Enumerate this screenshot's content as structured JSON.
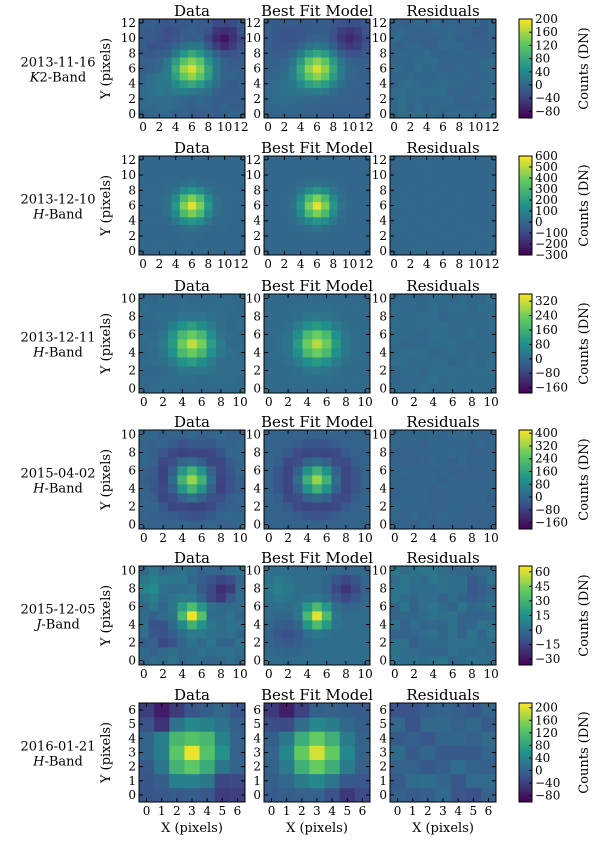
{
  "chart_data": {
    "type": "heatmap",
    "panel_titles": [
      "Data",
      "Best Fit Model",
      "Residuals"
    ],
    "xlabel": "X (pixels)",
    "ylabel": "Y (pixels)",
    "colorbar_label": "Counts (DN)",
    "colormap": [
      "#440154",
      "#3b528b",
      "#21918c",
      "#5ec962",
      "#fde725"
    ],
    "rows": [
      {
        "date": "2013-11-16",
        "band": "K2-Band",
        "band_letter": "K",
        "band_suffix": "2-Band",
        "grid_n": 13,
        "ticks": [
          "0",
          "2",
          "4",
          "6",
          "8",
          "10",
          "12"
        ],
        "cbar_ticks": [
          "200",
          "160",
          "120",
          "80",
          "40",
          "0",
          "−40",
          "−80"
        ],
        "cbar_range": [
          -100,
          200
        ],
        "peak": 190,
        "background": -8,
        "ring_amplitude": 0,
        "psf_sigma": 1.6,
        "residual_noise": 6,
        "features": [
          {
            "x": 2,
            "y": 3,
            "amp": 25,
            "width": 1.6
          },
          {
            "x": 10,
            "y": 10,
            "amp": -70,
            "width": 1.4
          },
          {
            "x": 3,
            "y": 10,
            "amp": -20,
            "width": 1.8
          }
        ]
      },
      {
        "date": "2013-12-10",
        "band": "H-Band",
        "band_letter": "H",
        "band_suffix": "-Band",
        "grid_n": 13,
        "ticks": [
          "0",
          "2",
          "4",
          "6",
          "8",
          "10",
          "12"
        ],
        "cbar_ticks": [
          "600",
          "500",
          "400",
          "300",
          "200",
          "100",
          "0",
          "−100",
          "−200",
          "−300"
        ],
        "cbar_range": [
          -300,
          600
        ],
        "peak": 560,
        "background": 0,
        "ring_amplitude": 0,
        "psf_sigma": 1.3,
        "residual_noise": 4,
        "features": []
      },
      {
        "date": "2013-12-11",
        "band": "H-Band",
        "band_letter": "H",
        "band_suffix": "-Band",
        "grid_n": 11,
        "ticks": [
          "0",
          "2",
          "4",
          "6",
          "8",
          "10"
        ],
        "cbar_ticks": [
          "320",
          "240",
          "160",
          "80",
          "0",
          "−80",
          "−160"
        ],
        "cbar_range": [
          -190,
          360
        ],
        "peak": 300,
        "background": 0,
        "ring_amplitude": 0,
        "psf_sigma": 1.4,
        "residual_noise": 8,
        "features": []
      },
      {
        "date": "2015-04-02",
        "band": "H-Band",
        "band_letter": "H",
        "band_suffix": "-Band",
        "grid_n": 11,
        "ticks": [
          "0",
          "2",
          "4",
          "6",
          "8",
          "10"
        ],
        "cbar_ticks": [
          "400",
          "320",
          "240",
          "160",
          "80",
          "0",
          "−80",
          "−160"
        ],
        "cbar_range": [
          -200,
          420
        ],
        "peak": 320,
        "background": 0,
        "ring_amplitude": -70,
        "psf_sigma": 1.0,
        "residual_noise": 10,
        "features": []
      },
      {
        "date": "2015-12-05",
        "band": "J-Band",
        "band_letter": "J",
        "band_suffix": "-Band",
        "grid_n": 11,
        "ticks": [
          "0",
          "2",
          "4",
          "6",
          "8",
          "10"
        ],
        "cbar_ticks": [
          "60",
          "45",
          "30",
          "15",
          "0",
          "−15",
          "−30"
        ],
        "cbar_range": [
          -36,
          66
        ],
        "peak": 62,
        "background": 0,
        "ring_amplitude": 0,
        "psf_sigma": 0.9,
        "residual_noise": 4,
        "features": [
          {
            "x": 8,
            "y": 8,
            "amp": -25,
            "width": 1.1
          },
          {
            "x": 2,
            "y": 3,
            "amp": -14,
            "width": 1.2
          },
          {
            "x": 1,
            "y": 8,
            "amp": 10,
            "width": 1.0
          }
        ]
      },
      {
        "date": "2016-01-21",
        "band": "H-Band",
        "band_letter": "H",
        "band_suffix": "-Band",
        "grid_n": 7,
        "ticks": [
          "0",
          "1",
          "2",
          "3",
          "4",
          "5",
          "6"
        ],
        "cbar_ticks": [
          "200",
          "160",
          "120",
          "80",
          "40",
          "0",
          "−40",
          "−80"
        ],
        "cbar_range": [
          -100,
          215
        ],
        "peak": 205,
        "background": -10,
        "ring_amplitude": 0,
        "psf_sigma": 1.25,
        "residual_noise": 15,
        "features": [
          {
            "x": 1,
            "y": 6,
            "amp": -80,
            "width": 0.9
          },
          {
            "x": 5,
            "y": 0,
            "amp": -50,
            "width": 0.8
          }
        ]
      }
    ]
  }
}
